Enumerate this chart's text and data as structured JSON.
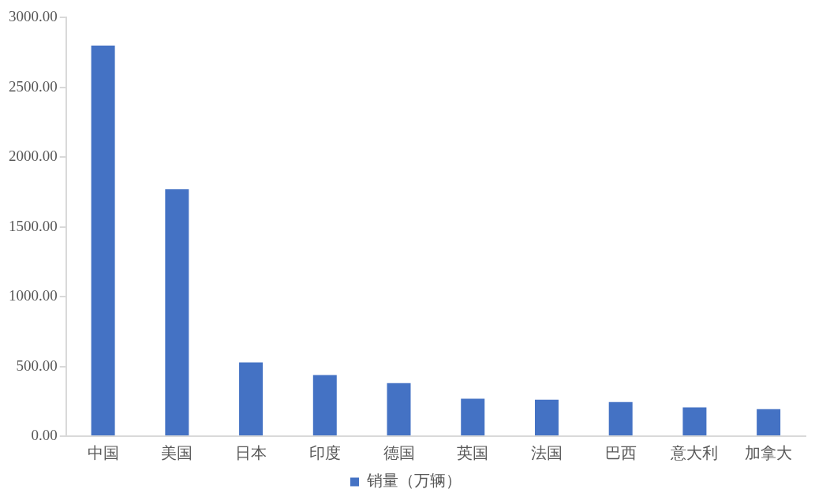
{
  "chart_data": {
    "type": "bar",
    "categories": [
      "中国",
      "美国",
      "日本",
      "印度",
      "德国",
      "英国",
      "法国",
      "巴西",
      "意大利",
      "加拿大"
    ],
    "series": [
      {
        "name": "销量（万辆）",
        "color": "#4472c4",
        "values": [
          2800,
          1770,
          528,
          438,
          380,
          269,
          261,
          245,
          207,
          193
        ]
      }
    ],
    "ylim": [
      0,
      3000
    ],
    "yticks": [
      {
        "value": 0,
        "label": "0.00"
      },
      {
        "value": 500,
        "label": "500.00"
      },
      {
        "value": 1000,
        "label": "1000.00"
      },
      {
        "value": 1500,
        "label": "1500.00"
      },
      {
        "value": 2000,
        "label": "2000.00"
      },
      {
        "value": 2500,
        "label": "2500.00"
      },
      {
        "value": 3000,
        "label": "3000.00"
      }
    ],
    "grid": false,
    "legend": "bottom"
  }
}
